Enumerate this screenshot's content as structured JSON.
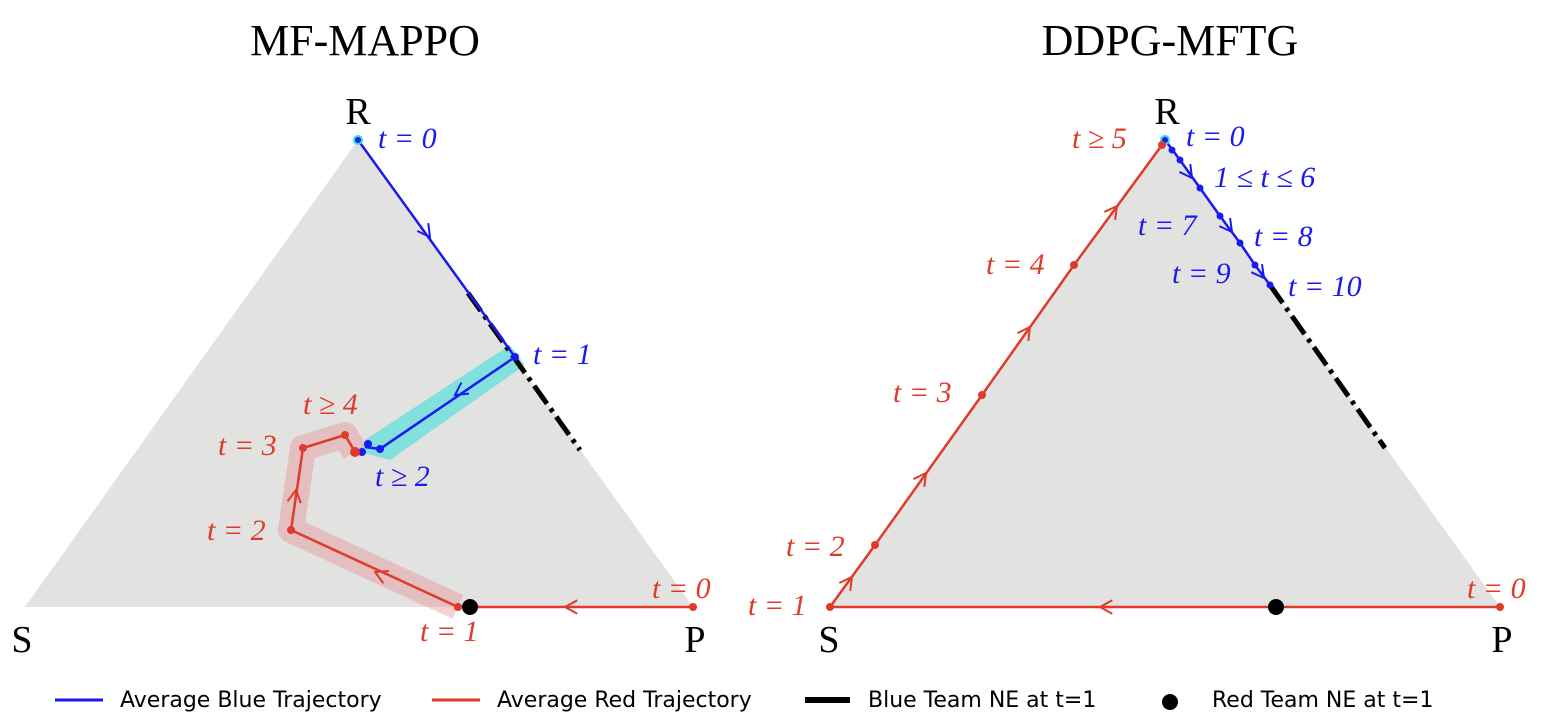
{
  "panels": [
    {
      "title": "MF-MAPPO",
      "vertices": [
        "R",
        "S",
        "P"
      ],
      "blue_labels": [
        "t = 0",
        "t = 1",
        "t ≥ 2"
      ],
      "red_labels": [
        "t = 0",
        "t = 1",
        "t = 2",
        "t = 3",
        "t ≥ 4"
      ]
    },
    {
      "title": "DDPG-MFTG",
      "vertices": [
        "R",
        "S",
        "P"
      ],
      "blue_labels": [
        "t = 0",
        "1 ≤ t ≤ 6",
        "t = 7",
        "t = 8",
        "t = 9",
        "t = 10"
      ],
      "red_labels": [
        "t = 0",
        "t = 1",
        "t = 2",
        "t = 3",
        "t = 4",
        "t ≥ 5"
      ]
    }
  ],
  "legend": [
    "Average Blue Trajectory",
    "Average Red Trajectory",
    "Blue Team NE at t=1",
    "Red Team NE at t=1"
  ]
}
